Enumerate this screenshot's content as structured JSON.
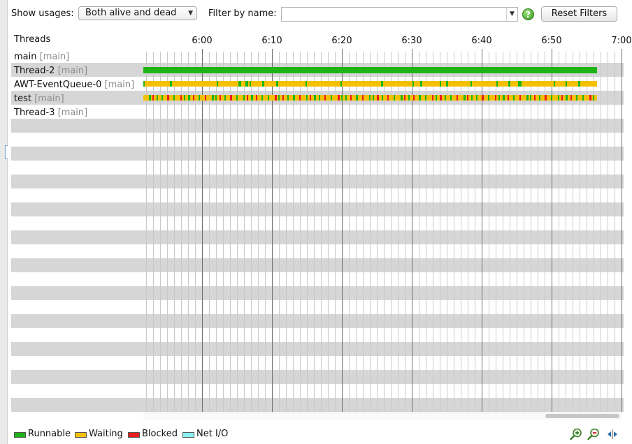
{
  "toolbar": {
    "show_usages_label": "Show usages:",
    "show_usages_value": "Both alive and dead",
    "filter_label": "Filter by name:",
    "filter_value": "",
    "reset_label": "Reset Filters"
  },
  "timeline": {
    "header": "Threads",
    "time_ticks": [
      "6:00",
      "6:10",
      "6:20",
      "6:30",
      "6:40",
      "6:50",
      "7:00"
    ],
    "threads": [
      {
        "name": "main",
        "group": "[main]",
        "state": "none"
      },
      {
        "name": "Thread-2",
        "group": "[main]",
        "state": "runnable"
      },
      {
        "name": "AWT-EventQueue-0",
        "group": "[main]",
        "state": "waiting-mostly"
      },
      {
        "name": "test",
        "group": "[main]",
        "state": "mixed"
      },
      {
        "name": "Thread-3",
        "group": "[main]",
        "state": "none"
      }
    ]
  },
  "legend": [
    {
      "label": "Runnable",
      "color": "#1db516"
    },
    {
      "label": "Waiting",
      "color": "#f5c000"
    },
    {
      "label": "Blocked",
      "color": "#e81d1d"
    },
    {
      "label": "Net I/O",
      "color": "#88f0f0"
    }
  ],
  "colors": {
    "runnable": "#1db516",
    "waiting": "#f5c000",
    "blocked": "#e81d1d",
    "stripe": "#d6d6d6"
  },
  "icons": {
    "help": "question-circle-icon",
    "zoom_in": "zoom-in-icon",
    "zoom_out": "zoom-out-icon",
    "fit": "fit-width-icon"
  }
}
